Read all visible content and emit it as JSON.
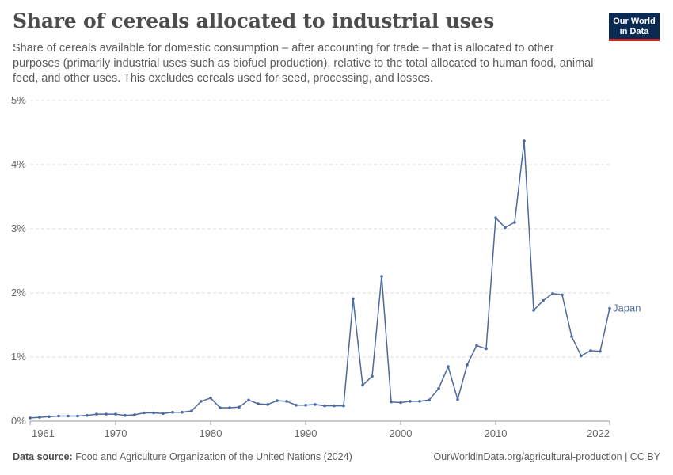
{
  "header": {
    "title": "Share of cereals allocated to industrial uses",
    "subtitle": "Share of cereals available for domestic consumption – after accounting for trade – that is allocated to other purposes (primarily industrial uses such as biofuel production), relative to the total allocated to human food, animal feed, and other uses. This excludes cereals used for seed, processing, and losses."
  },
  "logo": {
    "line1": "Our World",
    "line2": "in Data",
    "background": "#0b2a52",
    "accent": "#ce261e"
  },
  "footer": {
    "source_label": "Data source:",
    "source_text": "Food and Agriculture Organization of the United Nations (2024)",
    "url": "OurWorldinData.org/agricultural-production | CC BY"
  },
  "chart_data": {
    "type": "line",
    "title": "Share of cereals allocated to industrial uses",
    "xlabel": "",
    "ylabel": "",
    "xlim": [
      1961,
      2022
    ],
    "ylim": [
      0,
      5
    ],
    "y_ticks": [
      0,
      1,
      2,
      3,
      4,
      5
    ],
    "y_tick_labels": [
      "0%",
      "1%",
      "2%",
      "3%",
      "4%",
      "5%"
    ],
    "x_ticks": [
      1961,
      1970,
      1980,
      1990,
      2000,
      2010,
      2022
    ],
    "x_tick_labels": [
      "1961",
      "1970",
      "1980",
      "1990",
      "2000",
      "2010",
      "2022"
    ],
    "grid": "horizontal dashed",
    "line_color": "#4c6a9c",
    "series": [
      {
        "name": "Japan",
        "x": [
          1961,
          1962,
          1963,
          1964,
          1965,
          1966,
          1967,
          1968,
          1969,
          1970,
          1971,
          1972,
          1973,
          1974,
          1975,
          1976,
          1977,
          1978,
          1979,
          1980,
          1981,
          1982,
          1983,
          1984,
          1985,
          1986,
          1987,
          1988,
          1989,
          1990,
          1991,
          1992,
          1993,
          1994,
          1995,
          1996,
          1997,
          1998,
          1999,
          2000,
          2001,
          2002,
          2003,
          2004,
          2005,
          2006,
          2007,
          2008,
          2009,
          2010,
          2011,
          2012,
          2013,
          2014,
          2015,
          2016,
          2017,
          2018,
          2019,
          2020,
          2021,
          2022
        ],
        "values": [
          0.05,
          0.06,
          0.07,
          0.08,
          0.08,
          0.08,
          0.09,
          0.11,
          0.11,
          0.11,
          0.09,
          0.1,
          0.13,
          0.13,
          0.12,
          0.14,
          0.14,
          0.16,
          0.31,
          0.36,
          0.21,
          0.21,
          0.22,
          0.33,
          0.27,
          0.26,
          0.32,
          0.31,
          0.25,
          0.25,
          0.26,
          0.24,
          0.24,
          0.24,
          1.91,
          0.56,
          0.7,
          2.26,
          0.3,
          0.29,
          0.31,
          0.31,
          0.33,
          0.51,
          0.85,
          0.34,
          0.88,
          1.18,
          1.13,
          3.17,
          3.02,
          3.1,
          4.37,
          1.73,
          1.88,
          1.99,
          1.97,
          1.32,
          1.02,
          1.1,
          1.09,
          1.76
        ]
      }
    ]
  }
}
